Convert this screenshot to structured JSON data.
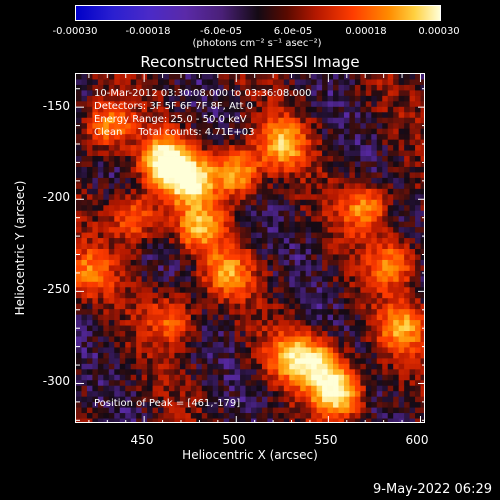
{
  "colorbar": {
    "ticks": [
      "-0.00030",
      "-0.00018",
      "-6.0e-05",
      "6.0e-05",
      "0.00018",
      "0.00030"
    ],
    "units": "(photons cm⁻² s⁻¹ asec⁻²)"
  },
  "title": "Reconstructed RHESSI Image",
  "annotations": {
    "time_range": "10-Mar-2012 03:30:08.000 to 03:36:08.000",
    "detectors": "Detectors: 3F 5F 6F 7F 8F, Att 0",
    "energy": "Energy Range: 25.0 - 50.0 keV",
    "clean": "Clean     Total counts: 4.71E+03",
    "peak": "Position of Peak = [461,-179]"
  },
  "axes": {
    "xlabel": "Heliocentric X (arcsec)",
    "ylabel": "Heliocentric Y (arcsec)",
    "xticks": [
      "450",
      "500",
      "550",
      "600"
    ],
    "yticks": [
      "-150",
      "-200",
      "-250",
      "-300"
    ]
  },
  "datestamp": "9-May-2022 06:29",
  "chart_data": {
    "type": "heatmap",
    "title": "Reconstructed RHESSI Image",
    "xlabel": "Heliocentric X (arcsec)",
    "ylabel": "Heliocentric Y (arcsec)",
    "xlim": [
      413,
      603
    ],
    "ylim": [
      -322,
      -132
    ],
    "xticks": [
      450,
      500,
      550,
      600
    ],
    "yticks": [
      -150,
      -200,
      -250,
      -300
    ],
    "colorbar_range": [
      -0.0003,
      0.0003
    ],
    "colorbar_ticks": [
      -0.0003,
      -0.00018,
      -6e-05,
      6e-05,
      0.00018,
      0.0003
    ],
    "peak_position": [
      461,
      -179
    ],
    "total_counts": 4710,
    "energy_range_kev": [
      25.0,
      50.0
    ],
    "colormap_stops": [
      "#0000c8",
      "#4a2ac8",
      "#5a2aa8",
      "#140a14",
      "#b41800",
      "#ff3c00",
      "#ff8c00",
      "#ffd040",
      "#ffffd8"
    ],
    "bright_regions": [
      {
        "x": 461,
        "y": -179,
        "value": 0.0003
      },
      {
        "x": 475,
        "y": -190,
        "value": 0.00026
      },
      {
        "x": 500,
        "y": -185,
        "value": 0.0002
      },
      {
        "x": 525,
        "y": -170,
        "value": 0.00018
      },
      {
        "x": 430,
        "y": -160,
        "value": 0.00015
      },
      {
        "x": 480,
        "y": -215,
        "value": 0.00016
      },
      {
        "x": 495,
        "y": -240,
        "value": 0.00014
      },
      {
        "x": 445,
        "y": -210,
        "value": 0.00012
      },
      {
        "x": 570,
        "y": -205,
        "value": 0.00014
      },
      {
        "x": 585,
        "y": -235,
        "value": 0.00012
      },
      {
        "x": 530,
        "y": -285,
        "value": 0.00016
      },
      {
        "x": 555,
        "y": -305,
        "value": 0.00028
      },
      {
        "x": 545,
        "y": -290,
        "value": 0.0002
      },
      {
        "x": 590,
        "y": -270,
        "value": 0.00015
      },
      {
        "x": 420,
        "y": -240,
        "value": 0.0001
      },
      {
        "x": 465,
        "y": -265,
        "value": 9e-05
      }
    ]
  }
}
